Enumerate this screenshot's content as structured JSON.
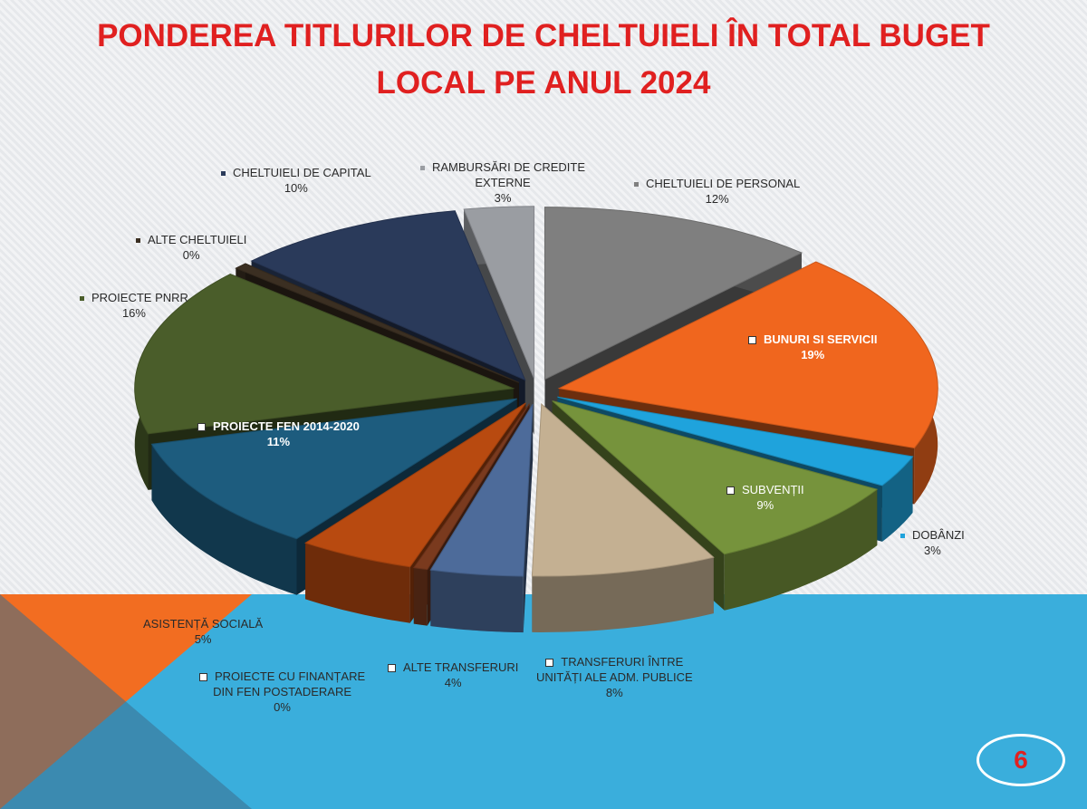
{
  "slide": {
    "title_line1": "PONDEREA TITLURILOR DE CHELTUIELI ÎN TOTAL BUGET",
    "title_line2": "LOCAL PE ANUL 2024",
    "page_number": "6"
  },
  "colors": {
    "title": "#e02020",
    "band_blue": "#3aaedc",
    "band_orange": "#f26d21"
  },
  "chart_data": {
    "type": "pie",
    "style": "3d-exploded",
    "title": "PONDEREA TITLURILOR DE CHELTUIELI ÎN TOTAL BUGET LOCAL PE ANUL 2024",
    "legend": "none (data labels on slices)",
    "slices": [
      {
        "label": "CHELTUIELI DE PERSONAL",
        "percent_label": "12%",
        "value": 12,
        "color": "#7f7f7f"
      },
      {
        "label": "BUNURI SI SERVICII",
        "percent_label": "19%",
        "value": 19,
        "color": "#f0661e"
      },
      {
        "label": "DOBÂNZI",
        "percent_label": "3%",
        "value": 3,
        "color": "#1fa3dc"
      },
      {
        "label": "SUBVENȚII",
        "percent_label": "9%",
        "value": 9,
        "color": "#76933c"
      },
      {
        "label": "TRANSFERURI ÎNTRE UNITĂȚI ALE ADM. PUBLICE",
        "percent_label": "8%",
        "value": 8,
        "color": "#c4b092"
      },
      {
        "label": "ALTE TRANSFERURI",
        "percent_label": "4%",
        "value": 4,
        "color": "#4d6b9a"
      },
      {
        "label": "PROIECTE CU FINANȚARE DIN FEN POSTADERARE",
        "percent_label": "0%",
        "value": 0,
        "color": "#7a3a1e"
      },
      {
        "label": "ASISTENȚĂ SOCIALĂ",
        "percent_label": "5%",
        "value": 5,
        "color": "#b84a10"
      },
      {
        "label": "PROIECTE FEN 2014-2020",
        "percent_label": "11%",
        "value": 11,
        "color": "#1d5c7e"
      },
      {
        "label": "PROIECTE PNRR",
        "percent_label": "16%",
        "value": 16,
        "color": "#4a5d2a"
      },
      {
        "label": "ALTE CHELTUIELI",
        "percent_label": "0%",
        "value": 0,
        "color": "#3b2f22"
      },
      {
        "label": "CHELTUIELI DE CAPITAL",
        "percent_label": "10%",
        "value": 10,
        "color": "#2a3a5a"
      },
      {
        "label": "RAMBURSĂRI DE CREDITE EXTERNE",
        "percent_label": "3%",
        "value": 3,
        "color": "#9a9da2"
      }
    ]
  },
  "labels": {
    "personal": {
      "name": "CHELTUIELI DE PERSONAL",
      "pct": "12%"
    },
    "bunuri": {
      "name": "BUNURI SI SERVICII",
      "pct": "19%"
    },
    "dobanzi": {
      "name": "DOBÂNZI",
      "pct": "3%"
    },
    "subventii": {
      "name": "SUBVENȚII",
      "pct": "9%"
    },
    "transferuri_l1": "TRANSFERURI ÎNTRE",
    "transferuri_l2": "UNITĂȚI ALE ADM. PUBLICE",
    "transferuri_pct": "8%",
    "alte_transferuri": {
      "name": "ALTE TRANSFERURI",
      "pct": "4%"
    },
    "postaderare_l1": "PROIECTE CU FINANȚARE",
    "postaderare_l2": "DIN FEN POSTADERARE",
    "postaderare_pct": "0%",
    "asistenta": {
      "name": "ASISTENȚĂ SOCIALĂ",
      "pct": "5%"
    },
    "fen": {
      "name": "PROIECTE FEN 2014-2020",
      "pct": "11%"
    },
    "pnrr": {
      "name": "PROIECTE PNRR",
      "pct": "16%"
    },
    "alte_cheltuieli": {
      "name": "ALTE CHELTUIELI",
      "pct": "0%"
    },
    "capital": {
      "name": "CHELTUIELI DE CAPITAL",
      "pct": "10%"
    },
    "rambursari_l1": "RAMBURSĂRI DE CREDITE",
    "rambursari_l2": "EXTERNE",
    "rambursari_pct": "3%"
  }
}
